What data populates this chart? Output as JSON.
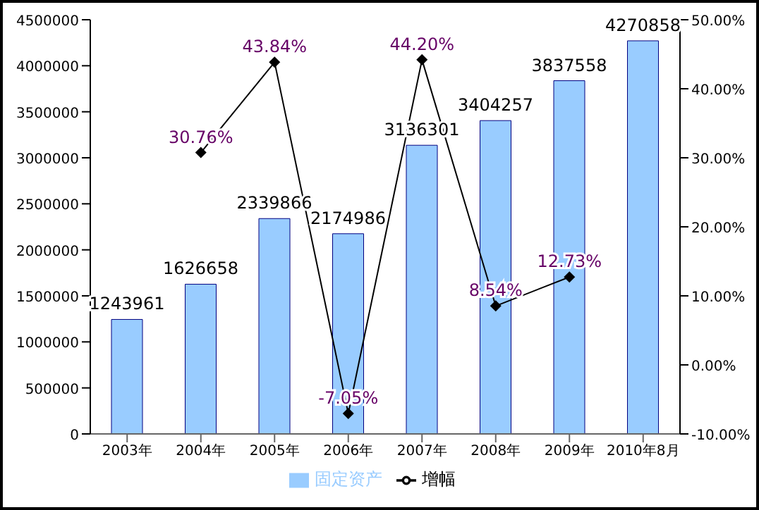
{
  "chart_data": {
    "type": "bar",
    "categories": [
      "2003年",
      "2004年",
      "2005年",
      "2006年",
      "2007年",
      "2008年",
      "2009年",
      "2010年8月"
    ],
    "series": [
      {
        "name": "固定资产",
        "color": "#99ccff",
        "values": [
          1243961,
          1626658,
          2339866,
          2174986,
          3136301,
          3404257,
          3837558,
          4270858
        ],
        "value_labels": [
          "1243961",
          "1626658",
          "2339866",
          "2174986",
          "3136301",
          "3404257",
          "3837558",
          "4270858"
        ]
      },
      {
        "name": "增幅",
        "type": "line",
        "axis": "y2",
        "color": "#000000",
        "marker": "diamond",
        "values": [
          null,
          30.76,
          43.84,
          -7.05,
          44.2,
          8.54,
          12.73,
          null
        ],
        "value_labels": [
          null,
          "30.76%",
          "43.84%",
          "-7.05%",
          "44.20%",
          "8.54%",
          "12.73%",
          null
        ]
      }
    ],
    "ylim": [
      0,
      4500000
    ],
    "yticks": [
      0,
      500000,
      1000000,
      1500000,
      2000000,
      2500000,
      3000000,
      3500000,
      4000000,
      4500000
    ],
    "y2lim": [
      -10,
      50
    ],
    "y2ticks": [
      {
        "value": -10,
        "label": "-10.00%"
      },
      {
        "value": 0,
        "label": "0.00%"
      },
      {
        "value": 10,
        "label": "10.00%"
      },
      {
        "value": 20,
        "label": "20.00%"
      },
      {
        "value": 30,
        "label": "30.00%"
      },
      {
        "value": 40,
        "label": "40.00%"
      },
      {
        "value": 50,
        "label": "50.00%"
      }
    ],
    "grid": false,
    "legend": "bottom"
  }
}
